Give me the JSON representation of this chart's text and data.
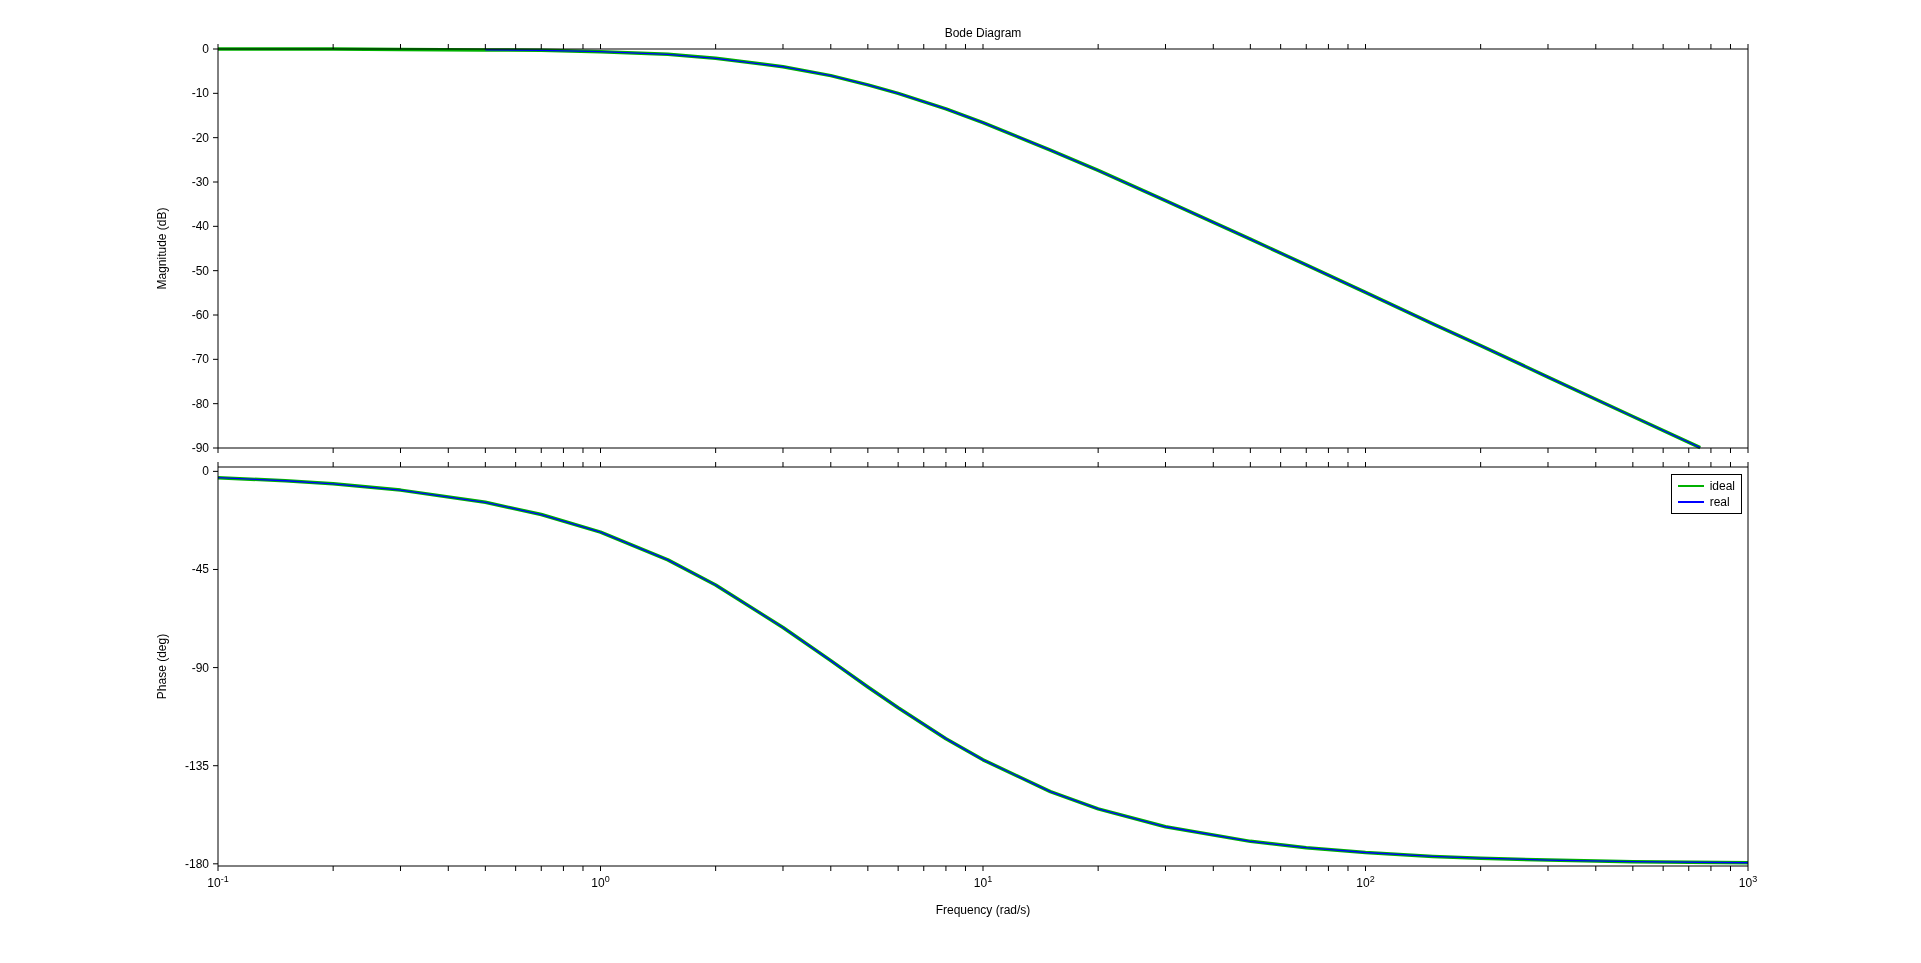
{
  "chart_data": [
    {
      "type": "line",
      "title": "Bode Diagram",
      "ylabel": "Magnitude (dB)",
      "log": "x",
      "tick_labels": "y",
      "xlim": [
        0.1,
        1000
      ],
      "ylim": [
        -90,
        0
      ],
      "yticks": [
        -90,
        -80,
        -70,
        -60,
        -50,
        -40,
        -30,
        -20,
        -10,
        0
      ],
      "xticks": [
        {
          "value": 0.1,
          "label": null
        },
        {
          "value": 0.2,
          "label": null
        },
        {
          "value": 0.3,
          "label": null
        },
        {
          "value": 0.4,
          "label": null
        },
        {
          "value": 0.5,
          "label": null
        },
        {
          "value": 0.6,
          "label": null
        },
        {
          "value": 0.7,
          "label": null
        },
        {
          "value": 0.8,
          "label": null
        },
        {
          "value": 0.9,
          "label": null
        },
        {
          "value": 1,
          "label": null
        },
        {
          "value": 2,
          "label": null
        },
        {
          "value": 3,
          "label": null
        },
        {
          "value": 4,
          "label": null
        },
        {
          "value": 5,
          "label": null
        },
        {
          "value": 6,
          "label": null
        },
        {
          "value": 7,
          "label": null
        },
        {
          "value": 8,
          "label": null
        },
        {
          "value": 9,
          "label": null
        },
        {
          "value": 10,
          "label": null
        },
        {
          "value": 20,
          "label": null
        },
        {
          "value": 30,
          "label": null
        },
        {
          "value": 40,
          "label": null
        },
        {
          "value": 50,
          "label": null
        },
        {
          "value": 60,
          "label": null
        },
        {
          "value": 70,
          "label": null
        },
        {
          "value": 80,
          "label": null
        },
        {
          "value": 90,
          "label": null
        },
        {
          "value": 100,
          "label": null
        },
        {
          "value": 200,
          "label": null
        },
        {
          "value": 300,
          "label": null
        },
        {
          "value": 400,
          "label": null
        },
        {
          "value": 500,
          "label": null
        },
        {
          "value": 600,
          "label": null
        },
        {
          "value": 700,
          "label": null
        },
        {
          "value": 800,
          "label": null
        },
        {
          "value": 900,
          "label": null
        },
        {
          "value": 1000,
          "label": null
        }
      ],
      "x": [
        0.1,
        0.15,
        0.2,
        0.3,
        0.5,
        0.7,
        1,
        1.5,
        2,
        3,
        4,
        5,
        6,
        8,
        10,
        15,
        20,
        30,
        50,
        70,
        100,
        150,
        200,
        300,
        500,
        750
      ],
      "series": [
        {
          "color": "#00b000",
          "values": [
            0,
            0,
            0,
            -0.1,
            -0.2,
            -0.3,
            -0.6,
            -1.2,
            -2.1,
            -4,
            -6,
            -8.1,
            -10,
            -13.5,
            -16.6,
            -22.8,
            -27.4,
            -34.2,
            -42.9,
            -48.7,
            -54.9,
            -62,
            -66.9,
            -74,
            -82.9,
            -89.9
          ]
        },
        {
          "color": "#0000ff",
          "values": [
            null,
            null,
            null,
            null,
            -0.2,
            -0.3,
            -0.6,
            -1.2,
            -2.1,
            -4,
            -6,
            -8.1,
            -10,
            -13.5,
            -16.6,
            -22.8,
            -27.4,
            -34.2,
            -42.9,
            -48.7,
            -54.9,
            -62,
            -66.9,
            -74,
            -82.9,
            -89.9
          ]
        }
      ]
    },
    {
      "type": "line",
      "xlabel": "Frequency (rad/s)",
      "ylabel": "Phase (deg)",
      "log": "x",
      "legend": "top right",
      "xlim": [
        0.1,
        1000
      ],
      "ylim": [
        -181,
        2
      ],
      "yticks": [
        -180,
        -135,
        -90,
        -45,
        0
      ],
      "xticks": [
        {
          "value": 0.1,
          "label": "10$^{-1}$"
        },
        {
          "value": 0.2,
          "label": null
        },
        {
          "value": 0.3,
          "label": null
        },
        {
          "value": 0.4,
          "label": null
        },
        {
          "value": 0.5,
          "label": null
        },
        {
          "value": 0.6,
          "label": null
        },
        {
          "value": 0.7,
          "label": null
        },
        {
          "value": 0.8,
          "label": null
        },
        {
          "value": 0.9,
          "label": null
        },
        {
          "value": 1,
          "label": "10$^{0}$"
        },
        {
          "value": 2,
          "label": null
        },
        {
          "value": 3,
          "label": null
        },
        {
          "value": 4,
          "label": null
        },
        {
          "value": 5,
          "label": null
        },
        {
          "value": 6,
          "label": null
        },
        {
          "value": 7,
          "label": null
        },
        {
          "value": 8,
          "label": null
        },
        {
          "value": 9,
          "label": null
        },
        {
          "value": 10,
          "label": "10$^{1}$"
        },
        {
          "value": 20,
          "label": null
        },
        {
          "value": 30,
          "label": null
        },
        {
          "value": 40,
          "label": null
        },
        {
          "value": 50,
          "label": null
        },
        {
          "value": 60,
          "label": null
        },
        {
          "value": 70,
          "label": null
        },
        {
          "value": 80,
          "label": null
        },
        {
          "value": 90,
          "label": null
        },
        {
          "value": 100,
          "label": "10$^{2}$"
        },
        {
          "value": 200,
          "label": null
        },
        {
          "value": 300,
          "label": null
        },
        {
          "value": 400,
          "label": null
        },
        {
          "value": 500,
          "label": null
        },
        {
          "value": 600,
          "label": null
        },
        {
          "value": 700,
          "label": null
        },
        {
          "value": 800,
          "label": null
        },
        {
          "value": 900,
          "label": null
        },
        {
          "value": 1000,
          "label": "10$^{3}$"
        }
      ],
      "x": [
        0.1,
        0.15,
        0.2,
        0.3,
        0.5,
        0.7,
        1,
        1.5,
        2,
        3,
        4,
        5,
        6,
        8,
        10,
        15,
        20,
        30,
        50,
        70,
        100,
        150,
        200,
        300,
        500,
        1000
      ],
      "series": [
        {
          "name": "ideal",
          "color": "#00b000",
          "values": [
            -2.9,
            -4.3,
            -5.7,
            -8.6,
            -14.2,
            -19.8,
            -27.9,
            -40.6,
            -52.1,
            -71.6,
            -86.8,
            -98.9,
            -108.4,
            -122.6,
            -132.3,
            -146.9,
            -154.8,
            -163,
            -169.7,
            -172.6,
            -174.8,
            -176.6,
            -177.4,
            -178.3,
            -179,
            -179.5
          ]
        },
        {
          "name": "real",
          "color": "#0000ff",
          "values": [
            -2.9,
            -4.3,
            -5.7,
            -8.6,
            -14.2,
            -19.8,
            -27.9,
            -40.6,
            -52.1,
            -71.6,
            -86.8,
            -98.9,
            -108.4,
            -122.6,
            -132.3,
            -146.9,
            -154.8,
            -163,
            -169.7,
            -172.6,
            -174.8,
            -176.6,
            -177.4,
            -178.3,
            -179,
            -179.5
          ]
        }
      ]
    }
  ]
}
